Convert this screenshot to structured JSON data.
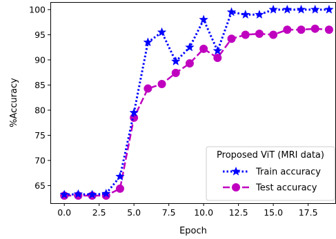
{
  "chart_data": {
    "type": "line",
    "xlabel": "Epoch",
    "ylabel": "%Accuracy",
    "xlim": [
      -1,
      19.5
    ],
    "ylim": [
      61.5,
      101.5
    ],
    "x_ticks": [
      0.0,
      2.5,
      5.0,
      7.5,
      10.0,
      12.5,
      15.0,
      17.5
    ],
    "x_tick_labels": [
      "0.0",
      "2.5",
      "5.0",
      "7.5",
      "10.0",
      "12.5",
      "15.0",
      "17.5"
    ],
    "y_ticks": [
      65,
      70,
      75,
      80,
      85,
      90,
      95,
      100
    ],
    "y_tick_labels": [
      "65",
      "70",
      "75",
      "80",
      "85",
      "90",
      "95",
      "100"
    ],
    "grid": false,
    "legend_title": "Proposed ViT (MRI data)",
    "legend_position": "lower-right",
    "x": [
      0,
      1,
      2,
      3,
      4,
      5,
      6,
      7,
      8,
      9,
      10,
      11,
      12,
      13,
      14,
      15,
      16,
      17,
      18,
      19
    ],
    "series": [
      {
        "name": "Train accuracy",
        "color": "#0000ff",
        "line_style": "dotted",
        "marker": "star",
        "values": [
          63.2,
          63.3,
          63.2,
          63.4,
          66.8,
          79.5,
          93.5,
          95.5,
          89.7,
          92.5,
          98.0,
          91.8,
          99.5,
          99.0,
          99.0,
          100.0,
          100.0,
          100.0,
          100.0,
          100.0
        ]
      },
      {
        "name": "Test accuracy",
        "color": "#bf00bf",
        "line_style": "dashed",
        "marker": "circle",
        "values": [
          63.0,
          63.0,
          63.0,
          63.0,
          64.4,
          78.5,
          84.3,
          85.2,
          87.4,
          89.3,
          92.2,
          90.4,
          94.2,
          95.0,
          95.2,
          95.0,
          96.0,
          96.0,
          96.2,
          96.0
        ]
      }
    ]
  }
}
